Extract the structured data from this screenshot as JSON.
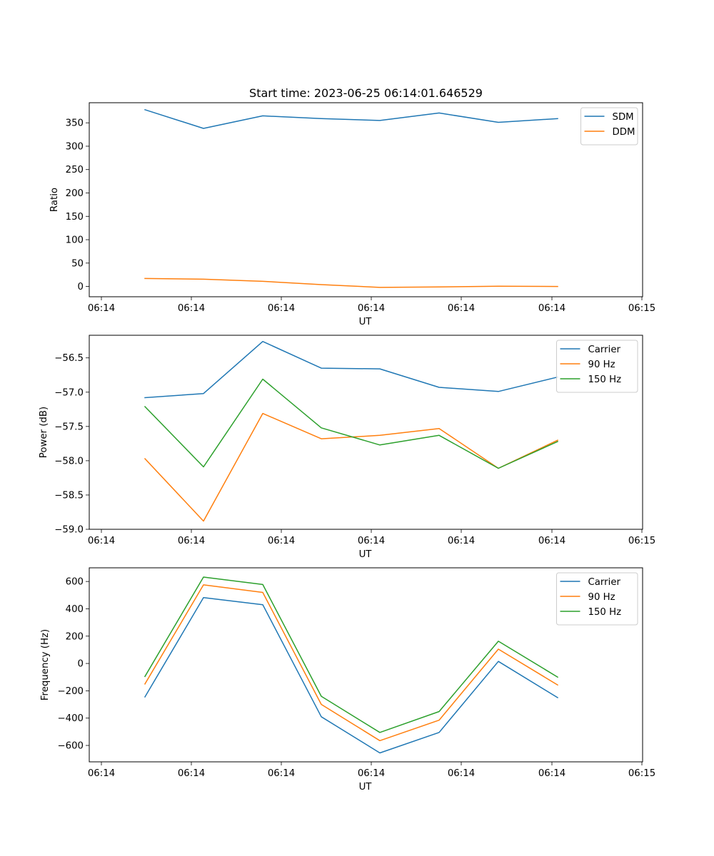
{
  "chart_data": [
    {
      "type": "line",
      "title": "Start time: 2023-06-25 06:14:01.646529",
      "xlabel": "UT",
      "ylabel": "Ratio",
      "x_tick_labels": [
        "06:14",
        "06:14",
        "06:14",
        "06:14",
        "06:14",
        "06:14",
        "06:15"
      ],
      "y_ticks": [
        0,
        50,
        100,
        150,
        200,
        250,
        300,
        350
      ],
      "ylim": [
        -22,
        393
      ],
      "grid": false,
      "legend_position": "top-right",
      "series": [
        {
          "name": "SDM",
          "color": "#1f77b4",
          "values": [
            378,
            338,
            365,
            359,
            355,
            371,
            351,
            359
          ]
        },
        {
          "name": "DDM",
          "color": "#ff7f0e",
          "values": [
            17,
            15.5,
            11,
            4,
            -2,
            -1,
            0.5,
            0
          ]
        }
      ]
    },
    {
      "type": "line",
      "title": "",
      "xlabel": "UT",
      "ylabel": "Power (dB)",
      "x_tick_labels": [
        "06:14",
        "06:14",
        "06:14",
        "06:14",
        "06:14",
        "06:14",
        "06:15"
      ],
      "y_ticks": [
        -59.0,
        -58.5,
        -58.0,
        -57.5,
        -57.0,
        -56.5
      ],
      "y_tick_labels": [
        "−59.0",
        "−58.5",
        "−58.0",
        "−57.5",
        "−57.0",
        "−56.5"
      ],
      "ylim": [
        -59.0,
        -56.17
      ],
      "grid": false,
      "legend_position": "top-right",
      "series": [
        {
          "name": "Carrier",
          "color": "#1f77b4",
          "values": [
            -57.08,
            -57.02,
            -56.26,
            -56.65,
            -56.66,
            -56.93,
            -56.99,
            -56.78
          ]
        },
        {
          "name": "90 Hz",
          "color": "#ff7f0e",
          "values": [
            -57.97,
            -58.88,
            -57.31,
            -57.68,
            -57.63,
            -57.53,
            -58.11,
            -57.7
          ]
        },
        {
          "name": "150 Hz",
          "color": "#2ca02c",
          "values": [
            -57.21,
            -58.09,
            -56.81,
            -57.52,
            -57.77,
            -57.63,
            -58.11,
            -57.72
          ]
        }
      ]
    },
    {
      "type": "line",
      "title": "",
      "xlabel": "UT",
      "ylabel": "Frequency (Hz)",
      "x_tick_labels": [
        "06:14",
        "06:14",
        "06:14",
        "06:14",
        "06:14",
        "06:14",
        "06:15"
      ],
      "y_ticks": [
        -600,
        -400,
        -200,
        0,
        200,
        400,
        600
      ],
      "y_tick_labels": [
        "−600",
        "−400",
        "−200",
        "0",
        "200",
        "400",
        "600"
      ],
      "ylim": [
        -720,
        700
      ],
      "grid": false,
      "legend_position": "top-right",
      "series": [
        {
          "name": "Carrier",
          "color": "#1f77b4",
          "values": [
            -245,
            482,
            430,
            -390,
            -655,
            -505,
            15,
            -250
          ]
        },
        {
          "name": "90 Hz",
          "color": "#ff7f0e",
          "values": [
            -150,
            575,
            520,
            -300,
            -565,
            -415,
            105,
            -157
          ]
        },
        {
          "name": "150 Hz",
          "color": "#2ca02c",
          "values": [
            -95,
            632,
            578,
            -240,
            -505,
            -352,
            163,
            -100
          ]
        }
      ]
    }
  ]
}
